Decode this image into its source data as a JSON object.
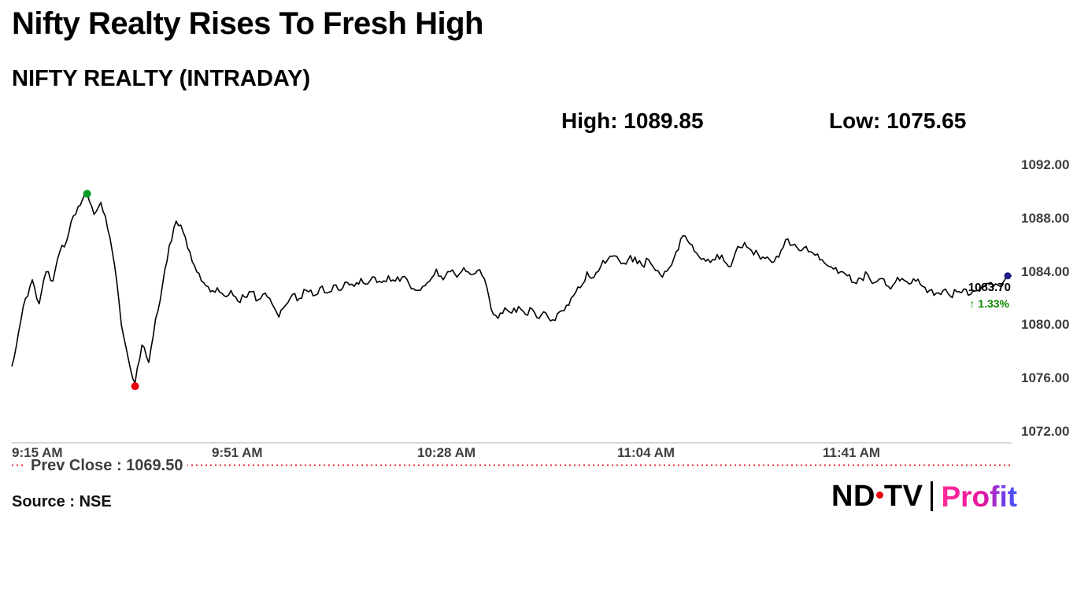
{
  "header": {
    "title": "Nifty Realty Rises To Fresh High",
    "subtitle": "NIFTY REALTY (INTRADAY)",
    "high_label": "High: 1089.85",
    "low_label": "Low: 1075.65"
  },
  "chart_data": {
    "type": "line",
    "title": "NIFTY REALTY (INTRADAY)",
    "line_color": "#000000",
    "grid": false,
    "legend": false,
    "ylim": [
      1072,
      1092
    ],
    "y_ticks": [
      {
        "v": 1092,
        "label": "1092.00"
      },
      {
        "v": 1088,
        "label": "1088.00"
      },
      {
        "v": 1084,
        "label": "1084.00"
      },
      {
        "v": 1080,
        "label": "1080.00"
      },
      {
        "v": 1076,
        "label": "1076.00"
      },
      {
        "v": 1072,
        "label": "1072.00"
      }
    ],
    "x_minutes_span": 180,
    "x_ticks": [
      {
        "label": "9:15 AM",
        "minute": 0
      },
      {
        "label": "9:51 AM",
        "minute": 36
      },
      {
        "label": "10:28 AM",
        "minute": 73
      },
      {
        "label": "11:04 AM",
        "minute": 109
      },
      {
        "label": "11:41 AM",
        "minute": 146
      }
    ],
    "values": [
      1076.9,
      1079.5,
      1082.0,
      1083.4,
      1081.6,
      1084.0,
      1083.3,
      1085.5,
      1086.3,
      1088.2,
      1089.0,
      1089.85,
      1088.3,
      1089.2,
      1087.2,
      1084.5,
      1080.0,
      1077.5,
      1075.65,
      1078.5,
      1077.2,
      1080.5,
      1083.0,
      1086.0,
      1087.8,
      1087.0,
      1085.5,
      1084.0,
      1083.2,
      1082.5,
      1082.8,
      1082.2,
      1082.6,
      1081.8,
      1082.1,
      1082.5,
      1081.9,
      1082.4,
      1081.6,
      1080.6,
      1081.5,
      1082.3,
      1082.0,
      1082.6,
      1082.2,
      1082.8,
      1082.4,
      1083.0,
      1082.6,
      1083.2,
      1082.9,
      1083.5,
      1083.1,
      1083.6,
      1083.2,
      1083.7,
      1083.3,
      1083.6,
      1083.1,
      1082.6,
      1082.9,
      1083.3,
      1084.2,
      1083.4,
      1084.0,
      1083.6,
      1084.3,
      1083.8,
      1084.1,
      1083.5,
      1081.2,
      1080.5,
      1081.3,
      1080.9,
      1081.4,
      1080.8,
      1081.2,
      1080.5,
      1080.9,
      1080.4,
      1081.0,
      1081.5,
      1082.2,
      1082.8,
      1084.0,
      1083.6,
      1084.4,
      1084.9,
      1085.2,
      1084.6,
      1084.9,
      1085.1,
      1084.5,
      1084.9,
      1084.1,
      1083.6,
      1084.3,
      1085.5,
      1086.7,
      1086.1,
      1085.4,
      1085.0,
      1084.7,
      1085.3,
      1084.8,
      1084.4,
      1085.9,
      1086.2,
      1085.6,
      1085.3,
      1085.0,
      1084.7,
      1085.1,
      1086.4,
      1086.0,
      1085.6,
      1085.9,
      1085.4,
      1084.9,
      1084.5,
      1084.2,
      1084.0,
      1083.7,
      1083.2,
      1083.5,
      1083.8,
      1083.2,
      1083.5,
      1082.9,
      1083.2,
      1083.5,
      1083.1,
      1083.3,
      1082.9,
      1082.6,
      1082.4,
      1082.6,
      1082.2,
      1082.5,
      1082.7,
      1082.3,
      1082.6,
      1082.9,
      1083.2,
      1083.0,
      1083.4,
      1083.7
    ],
    "high": {
      "value": 1089.85,
      "index": 11,
      "marker_color": "#0a9b28"
    },
    "low": {
      "value": 1075.65,
      "index": 18,
      "marker_color": "#e8000d"
    },
    "last": {
      "value": 1083.7,
      "label": "1083.70",
      "change_label": "↑ 1.33%",
      "change_color": "#0b8a00",
      "marker_color": "#1d2088"
    },
    "prev_close": {
      "value": 1069.5,
      "label": "Prev Close : 1069.50",
      "line_color": "#e8000d"
    },
    "axis_color": "#c9c9c9"
  },
  "footer": {
    "source": "Source : NSE",
    "logo": {
      "nd": "ND",
      "tv": "TV",
      "profit": "Profit"
    }
  }
}
